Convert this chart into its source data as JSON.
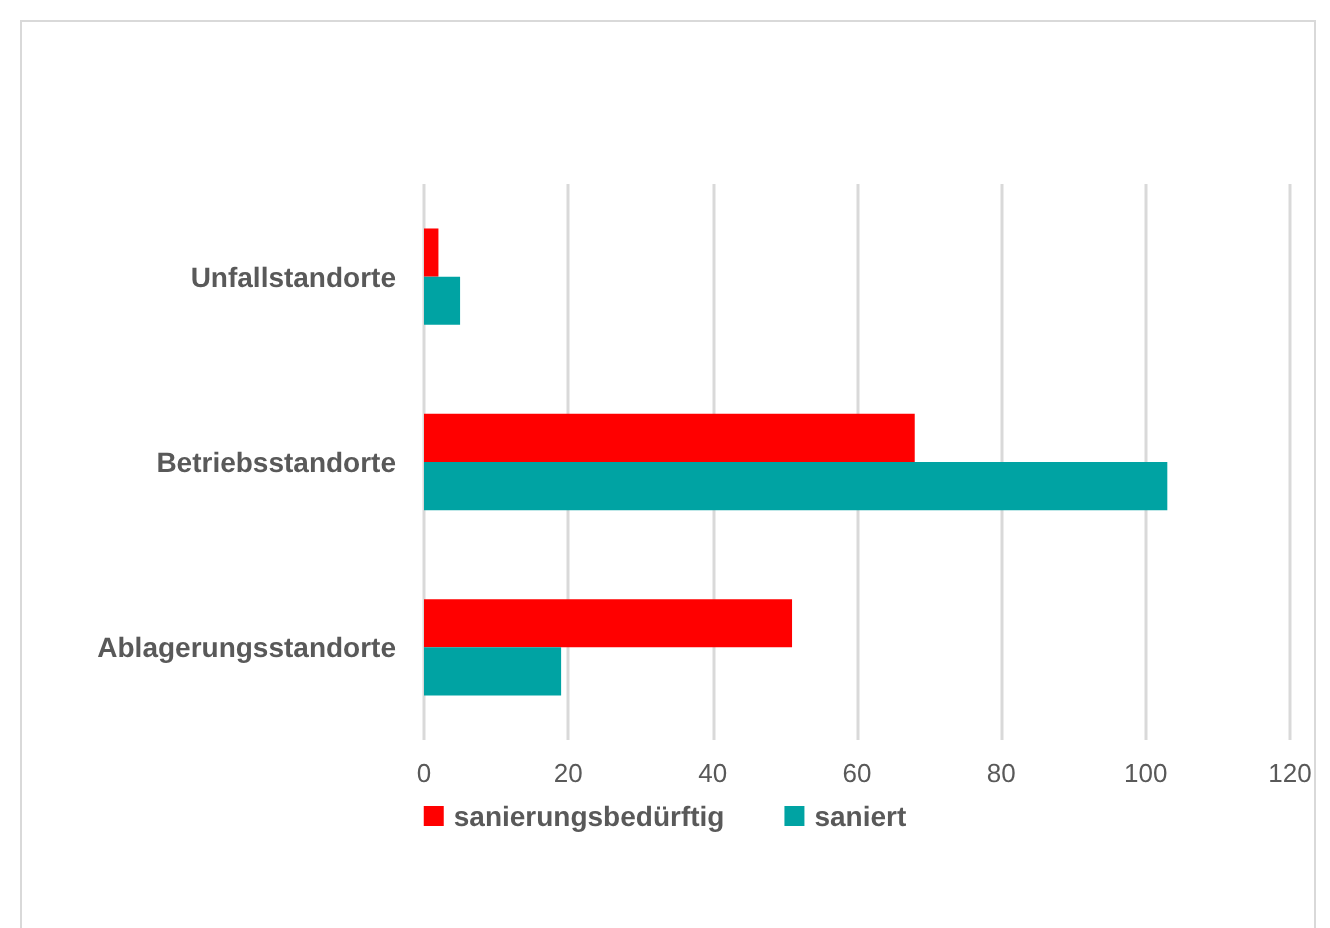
{
  "chart_data": {
    "type": "bar",
    "orientation": "horizontal",
    "categories": [
      "Unfallstandorte",
      "Betriebsstandorte",
      "Ablagerungsstandorte"
    ],
    "series": [
      {
        "name": "sanierungsbedürftig",
        "color": "#ff0000",
        "values": [
          2,
          68,
          51
        ]
      },
      {
        "name": "saniert",
        "color": "#00a3a3",
        "values": [
          5,
          103,
          19
        ]
      }
    ],
    "xlim": [
      0,
      120
    ],
    "xticks": [
      0,
      20,
      40,
      60,
      80,
      100,
      120
    ],
    "grid": "x",
    "legend": "bottom"
  }
}
